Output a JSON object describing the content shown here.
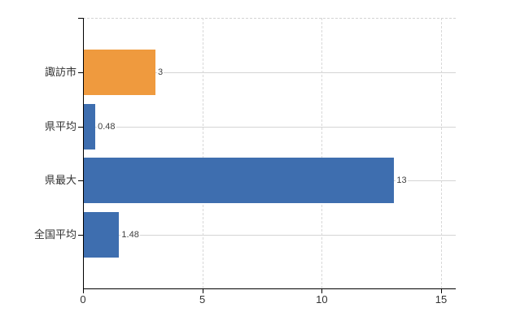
{
  "chart_data": {
    "type": "bar",
    "orientation": "horizontal",
    "title": "",
    "xlabel": "",
    "ylabel": "",
    "categories": [
      "諏訪市",
      "県平均",
      "県最大",
      "全国平均"
    ],
    "values": [
      3,
      0.48,
      13,
      1.48
    ],
    "value_labels": [
      "3",
      "0.48",
      "13",
      "1.48"
    ],
    "bar_colors": [
      "#EF9A3E",
      "#3E6EAF",
      "#3E6EAF",
      "#3E6EAF"
    ],
    "x_ticks": [
      "0",
      "5",
      "10",
      "15"
    ],
    "x_tick_values": [
      0,
      5,
      10,
      15
    ],
    "xlim": [
      0,
      15.6
    ],
    "grid": "on",
    "legend": "none",
    "colors": {
      "highlight_bar": "#EF9A3E",
      "default_bar": "#3E6EAF",
      "grid_line": "#D4D4D4",
      "axis_line": "#000000",
      "category_text": "#333333",
      "value_text": "#404040",
      "background": "#FFFFFF"
    }
  }
}
